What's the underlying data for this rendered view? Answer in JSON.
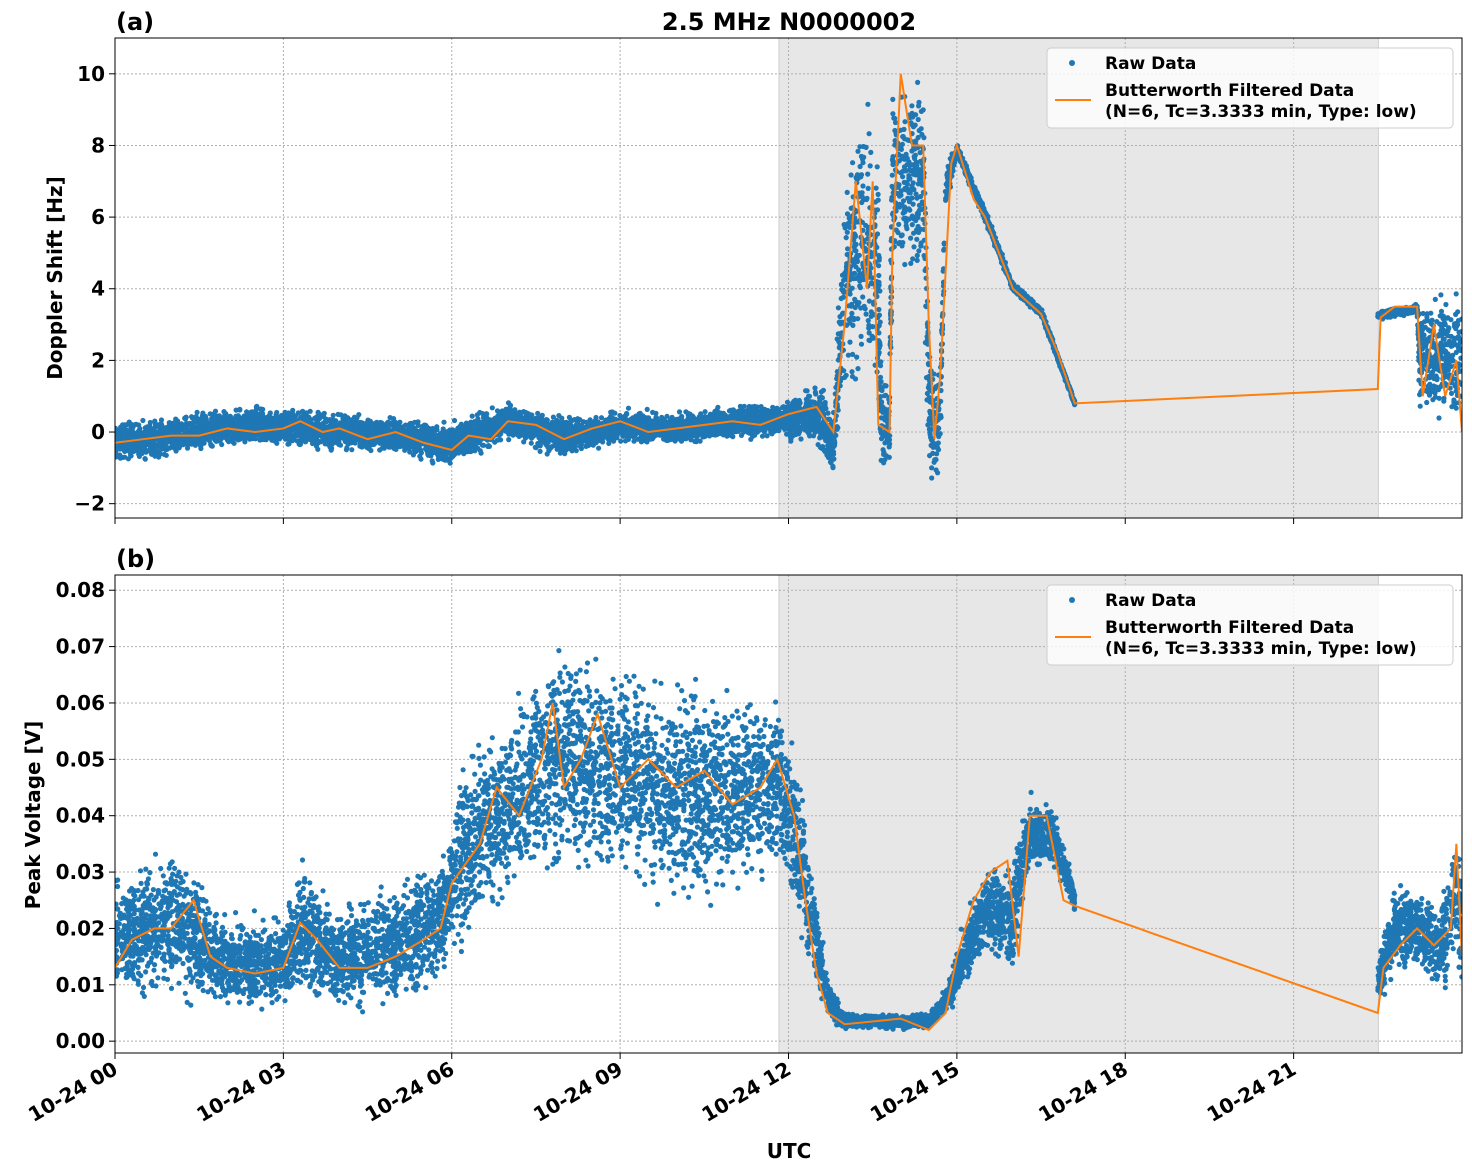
{
  "chart_data": [
    {
      "type": "scatter",
      "panel_label": "(a)",
      "title": "2.5 MHz N0000002",
      "ylabel": "Doppler Shift [Hz]",
      "xlabel": "",
      "xlim": [
        0,
        24
      ],
      "ylim": [
        -2.4,
        11
      ],
      "yticks": [
        -2,
        0,
        2,
        4,
        6,
        8,
        10
      ],
      "yticklabels": [
        "−2",
        "0",
        "2",
        "4",
        "6",
        "8",
        "10"
      ],
      "grid": true,
      "shaded_interval_hours": [
        11.83,
        22.51
      ],
      "legend": {
        "placement": "top-right",
        "entries": [
          "Raw Data",
          "Butterworth Filtered Data",
          "(N=6, Tc=3.3333 min, Type: low)"
        ]
      },
      "series": [
        {
          "name": "Raw Data",
          "style": "points",
          "color": "#1f77b4",
          "envelope_hours_low_high": [
            [
              0,
              -0.9,
              0.4
            ],
            [
              1,
              -0.8,
              0.5
            ],
            [
              2,
              -0.5,
              0.8
            ],
            [
              3,
              -0.5,
              0.8
            ],
            [
              4,
              -0.6,
              0.6
            ],
            [
              5,
              -0.7,
              0.5
            ],
            [
              6,
              -1.1,
              0.4
            ],
            [
              7,
              -0.3,
              0.9
            ],
            [
              8,
              -0.8,
              0.5
            ],
            [
              9,
              -0.4,
              0.7
            ],
            [
              10,
              -0.4,
              0.6
            ],
            [
              11,
              -0.3,
              0.8
            ],
            [
              11.8,
              -0.2,
              0.9
            ],
            [
              12.5,
              -0.5,
              1.5
            ],
            [
              12.8,
              -1.5,
              1.0
            ],
            [
              13.0,
              0,
              8
            ],
            [
              13.3,
              1,
              10
            ],
            [
              13.6,
              0,
              9
            ],
            [
              13.65,
              -1.7,
              2
            ],
            [
              13.8,
              -1.7,
              2
            ],
            [
              13.85,
              4,
              10.3
            ],
            [
              14.4,
              4,
              10.3
            ],
            [
              14.5,
              -1.7,
              3
            ],
            [
              14.7,
              -1.7,
              2
            ],
            [
              14.8,
              6,
              7.5
            ],
            [
              15,
              7.7,
              8.1
            ],
            [
              15.5,
              5.8,
              6.3
            ],
            [
              16,
              3.9,
              4.2
            ],
            [
              16.5,
              3.2,
              3.5
            ],
            [
              17.1,
              0.7,
              0.9
            ],
            null,
            [
              22.5,
              3.1,
              3.4
            ],
            [
              23.2,
              3.3,
              3.6
            ],
            [
              23.25,
              0,
              4
            ],
            [
              24,
              0,
              4.3
            ]
          ]
        },
        {
          "name": "Butterworth Filtered Data",
          "style": "line",
          "color": "#ff7f0e",
          "x": [
            0,
            0.5,
            1,
            1.5,
            2,
            2.5,
            3,
            3.3,
            3.7,
            4,
            4.5,
            5,
            5.5,
            6,
            6.3,
            6.7,
            7,
            7.5,
            8,
            8.5,
            9,
            9.5,
            10,
            10.5,
            11,
            11.5,
            12,
            12.5,
            12.8,
            13,
            13.2,
            13.4,
            13.5,
            13.6,
            13.8,
            13.85,
            14,
            14.2,
            14.4,
            14.5,
            14.6,
            14.7,
            14.9,
            15,
            15.3,
            15.5,
            16,
            16.5,
            16.8,
            17.1,
            22.5,
            22.55,
            22.8,
            23.2,
            23.3,
            23.5,
            23.7,
            23.9,
            24
          ],
          "y": [
            -0.3,
            -0.2,
            -0.1,
            -0.1,
            0.1,
            0,
            0.1,
            0.3,
            0,
            0.1,
            -0.2,
            0,
            -0.3,
            -0.5,
            -0.1,
            -0.2,
            0.3,
            0.2,
            -0.2,
            0.1,
            0.3,
            0,
            0.1,
            0.2,
            0.3,
            0.2,
            0.5,
            0.7,
            0,
            3,
            7,
            4,
            7,
            0.2,
            0,
            5,
            10,
            8,
            8,
            3,
            -0.2,
            1.5,
            7.5,
            8,
            6.5,
            6,
            4,
            3.3,
            2.2,
            0.8,
            1.2,
            3.2,
            3.5,
            3.5,
            1,
            3,
            1,
            2,
            0
          ]
        }
      ]
    },
    {
      "type": "scatter",
      "panel_label": "(b)",
      "ylabel": "Peak Voltage [V]",
      "xlabel": "UTC",
      "xlim": [
        0,
        24
      ],
      "ylim": [
        -0.0021,
        0.0827
      ],
      "yticks": [
        0,
        0.01,
        0.02,
        0.03,
        0.04,
        0.05,
        0.06,
        0.07,
        0.08
      ],
      "yticklabels": [
        "0.00",
        "0.01",
        "0.02",
        "0.03",
        "0.04",
        "0.05",
        "0.06",
        "0.07",
        "0.08"
      ],
      "xticks": [
        0,
        3,
        6,
        9,
        12,
        15,
        18,
        21
      ],
      "xticklabels": [
        "10-24 00",
        "10-24 03",
        "10-24 06",
        "10-24 09",
        "10-24 12",
        "10-24 15",
        "10-24 18",
        "10-24 21"
      ],
      "grid": true,
      "shaded_interval_hours": [
        11.83,
        22.51
      ],
      "legend": {
        "placement": "top-right",
        "entries": [
          "Raw Data",
          "Butterworth Filtered Data",
          "(N=6, Tc=3.3333 min, Type: low)"
        ]
      },
      "series": [
        {
          "name": "Raw Data",
          "style": "points",
          "color": "#1f77b4",
          "envelope_hours_low_high": [
            [
              0,
              0.005,
              0.03
            ],
            [
              1,
              0.007,
              0.037
            ],
            [
              1.5,
              0.005,
              0.03
            ],
            [
              2,
              0.004,
              0.023
            ],
            [
              3,
              0.004,
              0.024
            ],
            [
              3.3,
              0.007,
              0.034
            ],
            [
              4,
              0.004,
              0.025
            ],
            [
              5,
              0.004,
              0.03
            ],
            [
              5.8,
              0.008,
              0.035
            ],
            [
              6,
              0.013,
              0.045
            ],
            [
              6.5,
              0.018,
              0.058
            ],
            [
              7,
              0.022,
              0.06
            ],
            [
              7.5,
              0.025,
              0.07
            ],
            [
              8,
              0.027,
              0.074
            ],
            [
              9,
              0.025,
              0.07
            ],
            [
              10,
              0.02,
              0.068
            ],
            [
              11,
              0.022,
              0.066
            ],
            [
              11.8,
              0.028,
              0.064
            ],
            [
              12.1,
              0.02,
              0.055
            ],
            [
              12.4,
              0.01,
              0.035
            ],
            [
              12.7,
              0.003,
              0.012
            ],
            [
              13,
              0.002,
              0.005
            ],
            [
              14.5,
              0.002,
              0.005
            ],
            [
              14.8,
              0.004,
              0.01
            ],
            [
              15,
              0.006,
              0.018
            ],
            [
              15.5,
              0.015,
              0.032
            ],
            [
              16,
              0.01,
              0.035
            ],
            [
              16.3,
              0.03,
              0.045
            ],
            [
              16.7,
              0.03,
              0.043
            ],
            [
              17.1,
              0.022,
              0.028
            ],
            null,
            [
              22.5,
              0.006,
              0.014
            ],
            [
              22.8,
              0.01,
              0.03
            ],
            [
              23.2,
              0.012,
              0.028
            ],
            [
              23.6,
              0.008,
              0.025
            ],
            [
              23.9,
              0.01,
              0.045
            ],
            [
              24,
              0.005,
              0.03
            ]
          ]
        },
        {
          "name": "Butterworth Filtered Data",
          "style": "line",
          "color": "#ff7f0e",
          "x": [
            0,
            0.3,
            0.7,
            1,
            1.4,
            1.7,
            2,
            2.5,
            3,
            3.3,
            3.6,
            4,
            4.5,
            5,
            5.5,
            5.8,
            6,
            6.5,
            6.8,
            7.2,
            7.6,
            7.8,
            8,
            8.3,
            8.6,
            9,
            9.5,
            10,
            10.5,
            11,
            11.5,
            11.8,
            12.1,
            12.3,
            12.5,
            12.7,
            13,
            14,
            14.5,
            14.8,
            15,
            15.3,
            15.6,
            15.9,
            16.1,
            16.3,
            16.6,
            16.9,
            17.1,
            22.5,
            22.6,
            22.9,
            23.2,
            23.5,
            23.8,
            23.9,
            24
          ],
          "y": [
            0.013,
            0.018,
            0.02,
            0.02,
            0.025,
            0.015,
            0.013,
            0.012,
            0.013,
            0.021,
            0.018,
            0.013,
            0.013,
            0.015,
            0.018,
            0.02,
            0.028,
            0.035,
            0.045,
            0.04,
            0.05,
            0.06,
            0.045,
            0.05,
            0.058,
            0.045,
            0.05,
            0.045,
            0.048,
            0.042,
            0.045,
            0.05,
            0.04,
            0.025,
            0.012,
            0.005,
            0.003,
            0.004,
            0.002,
            0.005,
            0.015,
            0.025,
            0.03,
            0.032,
            0.015,
            0.04,
            0.04,
            0.025,
            0.024,
            0.005,
            0.013,
            0.017,
            0.02,
            0.017,
            0.02,
            0.035,
            0.015
          ]
        }
      ]
    }
  ]
}
